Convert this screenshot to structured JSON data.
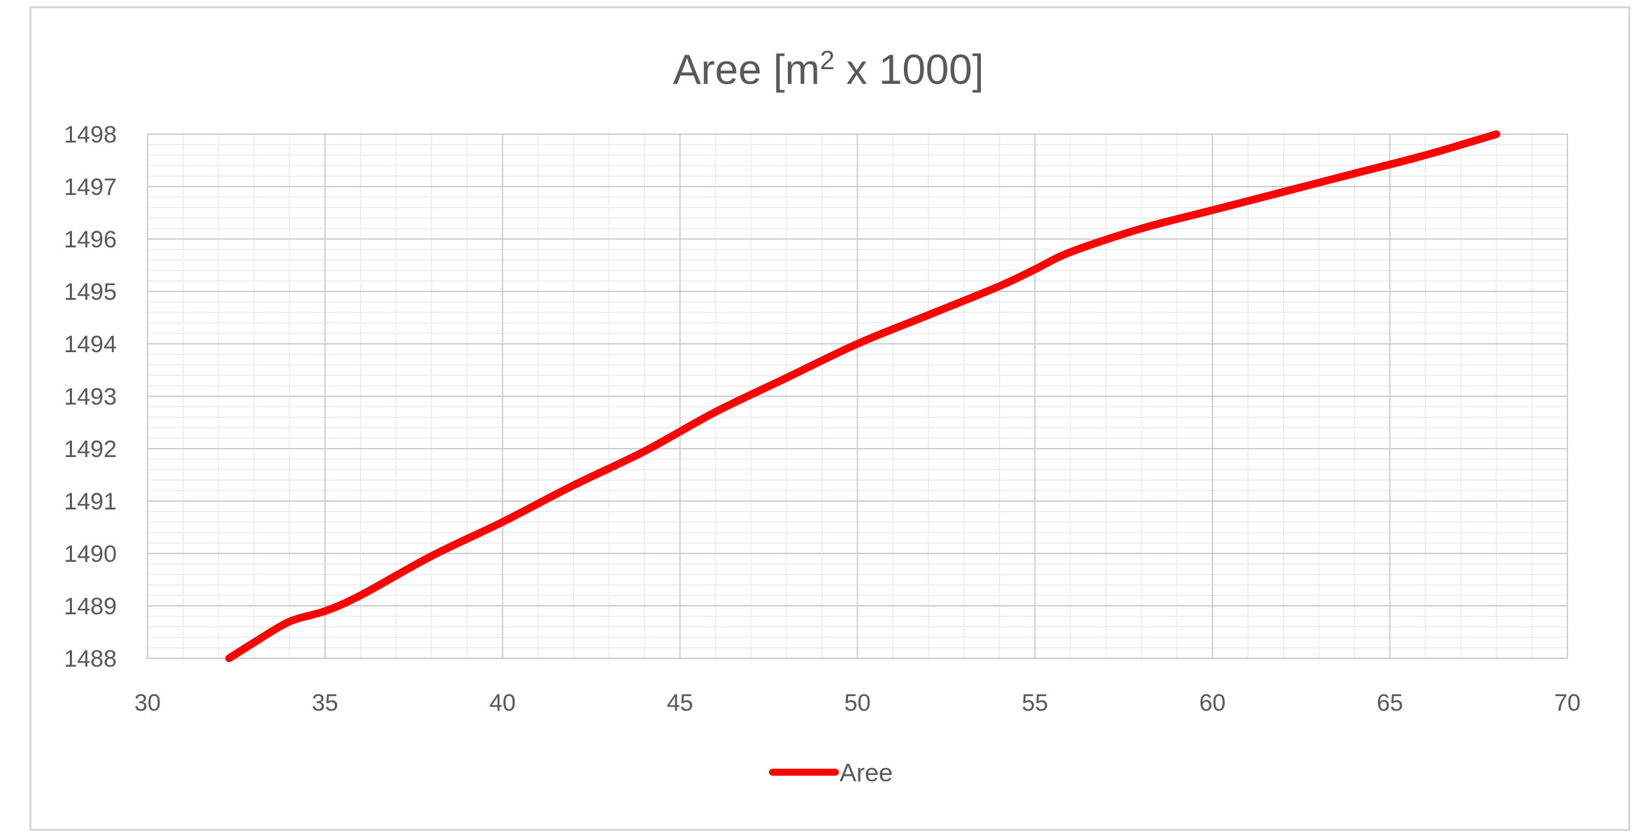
{
  "chart_data": {
    "type": "line",
    "title": "Aree [m2 x 1000]",
    "title_parts": {
      "base": "Aree [m",
      "sup": "2",
      "rest": " x 1000]"
    },
    "xlabel": "",
    "ylabel": "",
    "xlim": [
      30,
      70
    ],
    "ylim": [
      1488,
      1498
    ],
    "x_ticks": [
      "30",
      "35",
      "40",
      "45",
      "50",
      "55",
      "60",
      "65",
      "70"
    ],
    "y_ticks": [
      "1488",
      "1489",
      "1490",
      "1491",
      "1492",
      "1493",
      "1494",
      "1495",
      "1496",
      "1497",
      "1498"
    ],
    "grid": true,
    "legend_position": "bottom",
    "series": [
      {
        "name": "Aree",
        "color": "#ff0000",
        "x": [
          32.3,
          33,
          34,
          35,
          36,
          38,
          40,
          42,
          44,
          46,
          48,
          50,
          52,
          54,
          55,
          56,
          58,
          60,
          62,
          64,
          66,
          68
        ],
        "y": [
          1488,
          1488.3,
          1488.7,
          1488.9,
          1489.2,
          1489.95,
          1490.6,
          1491.3,
          1491.95,
          1492.7,
          1493.35,
          1494.0,
          1494.55,
          1495.1,
          1495.42,
          1495.75,
          1496.2,
          1496.55,
          1496.9,
          1497.25,
          1497.6,
          1498
        ]
      }
    ]
  }
}
